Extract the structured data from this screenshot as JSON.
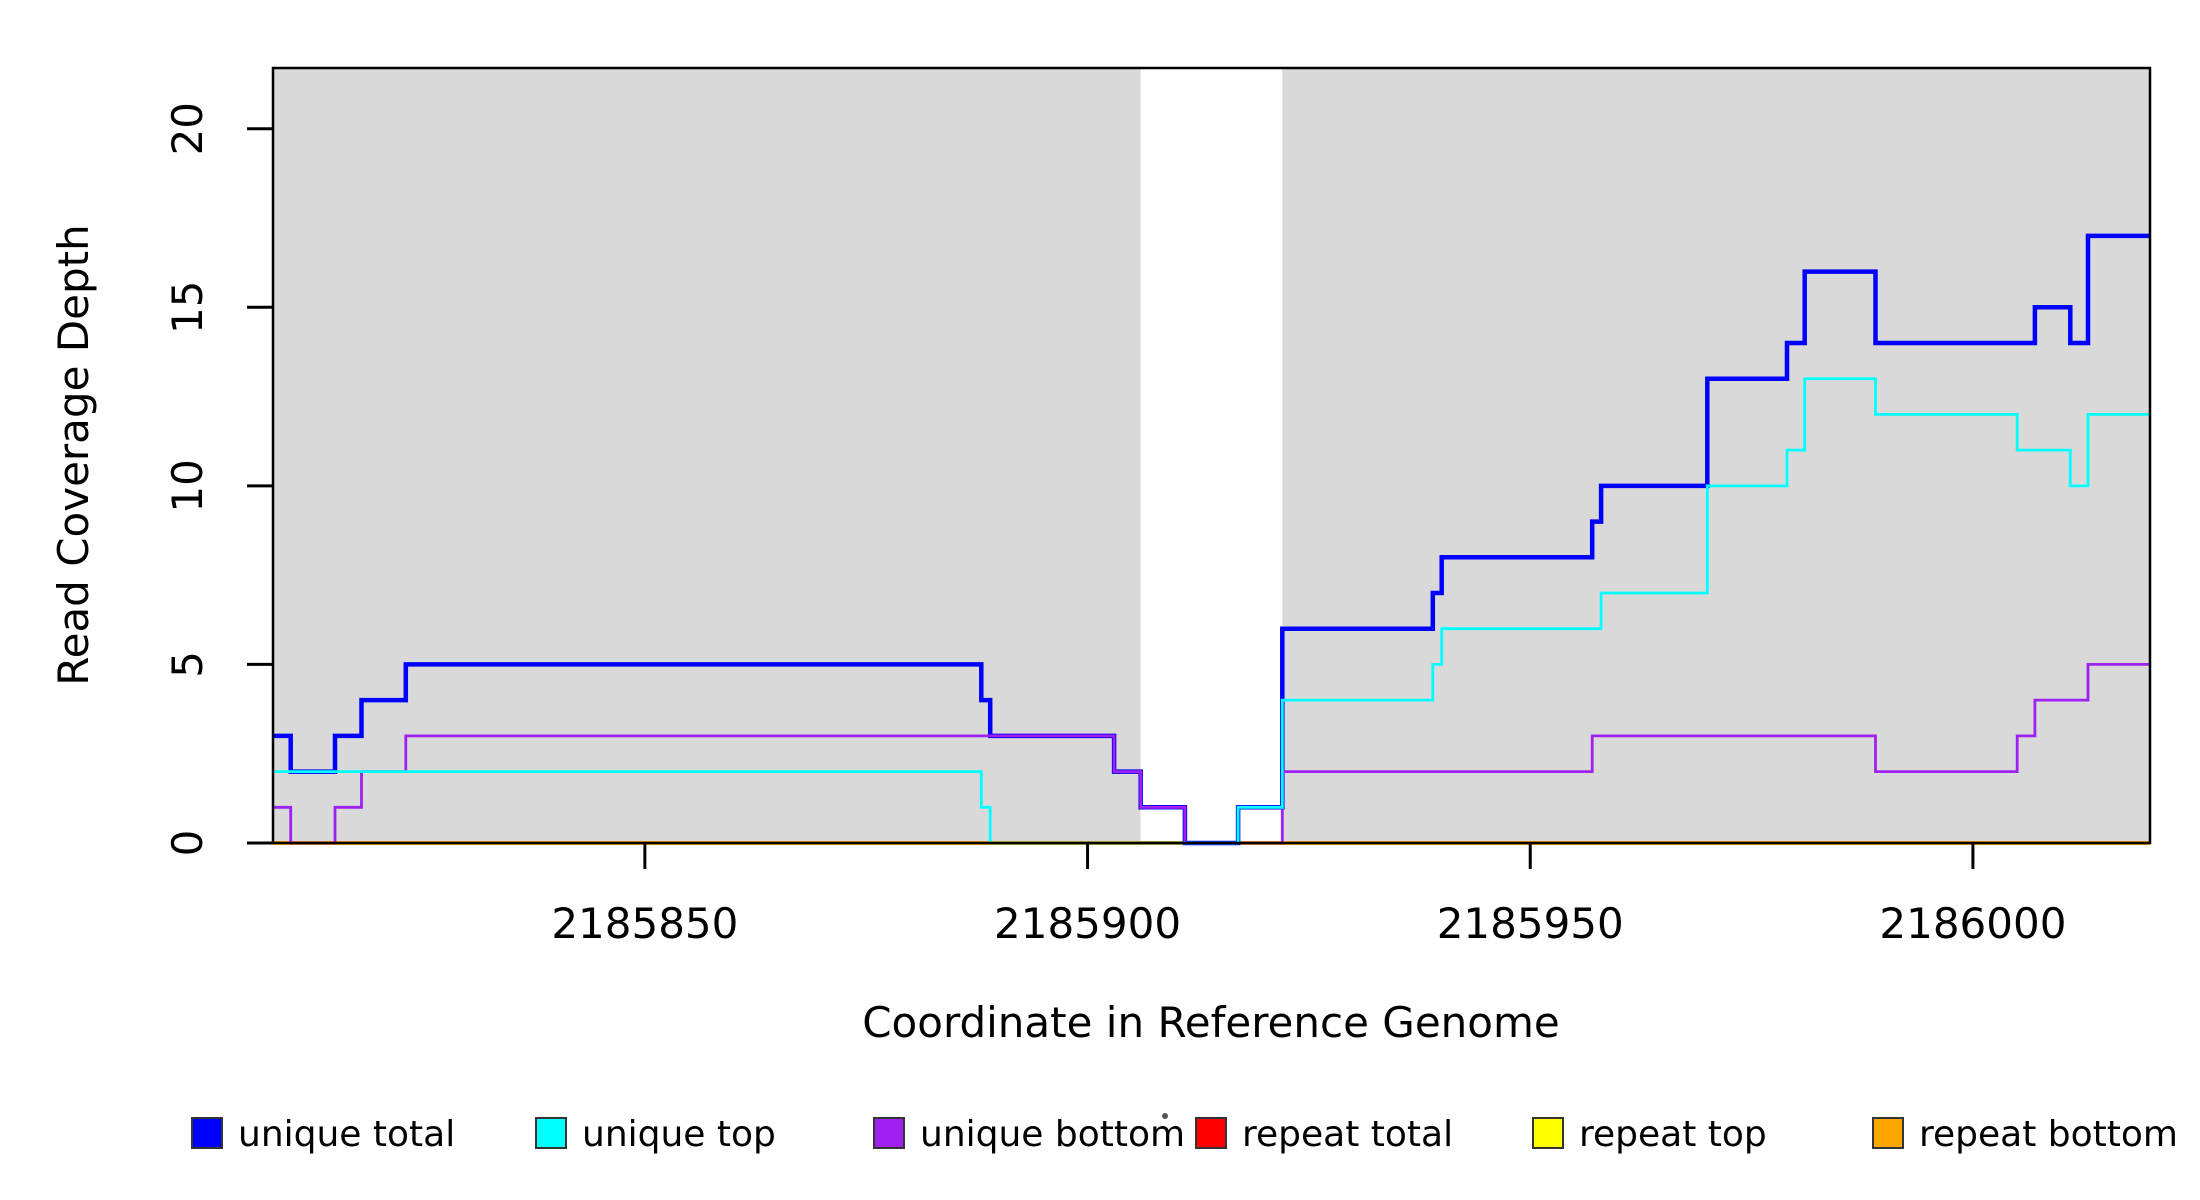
{
  "chart_data": {
    "type": "line",
    "subtype": "step-coverage",
    "title": "",
    "xlabel": "Coordinate in Reference Genome",
    "ylabel": "Read Coverage Depth",
    "xlim": [
      2185808,
      2186020
    ],
    "ylim": [
      0,
      21.7
    ],
    "x_ticks": [
      2185850,
      2185900,
      2185950,
      2186000
    ],
    "y_ticks": [
      0,
      5,
      10,
      15,
      20
    ],
    "grid": false,
    "legend_position": "bottom",
    "panel_background_color": "#ffffff",
    "shaded_region_color": "#D9D9D9",
    "shaded_regions": [
      {
        "x0": 2185808,
        "x1": 2185906
      },
      {
        "x0": 2185922,
        "x1": 2186020
      }
    ],
    "series": [
      {
        "name": "unique total",
        "color": "#0000FF",
        "line_width": 4.5,
        "points": [
          [
            2185808,
            3
          ],
          [
            2185810,
            2
          ],
          [
            2185815,
            3
          ],
          [
            2185818,
            4
          ],
          [
            2185823,
            5
          ],
          [
            2185888,
            4
          ],
          [
            2185889,
            3
          ],
          [
            2185903,
            2
          ],
          [
            2185906,
            1
          ],
          [
            2185911,
            0
          ],
          [
            2185917,
            1
          ],
          [
            2185922,
            6
          ],
          [
            2185939,
            7
          ],
          [
            2185940,
            8
          ],
          [
            2185957,
            9
          ],
          [
            2185958,
            10
          ],
          [
            2185970,
            13
          ],
          [
            2185979,
            14
          ],
          [
            2185981,
            16
          ],
          [
            2185989,
            14
          ],
          [
            2186007,
            15
          ],
          [
            2186011,
            14
          ],
          [
            2186013,
            17
          ],
          [
            2186020,
            17
          ]
        ]
      },
      {
        "name": "unique top",
        "color": "#00FFFF",
        "line_width": 2.8,
        "points": [
          [
            2185808,
            2
          ],
          [
            2185888,
            1
          ],
          [
            2185889,
            0
          ],
          [
            2185917,
            1
          ],
          [
            2185922,
            4
          ],
          [
            2185939,
            5
          ],
          [
            2185940,
            6
          ],
          [
            2185958,
            7
          ],
          [
            2185970,
            10
          ],
          [
            2185979,
            11
          ],
          [
            2185981,
            13
          ],
          [
            2185989,
            12
          ],
          [
            2186005,
            11
          ],
          [
            2186011,
            10
          ],
          [
            2186013,
            12
          ],
          [
            2186020,
            12
          ]
        ]
      },
      {
        "name": "unique bottom",
        "color": "#A020F0",
        "line_width": 2.8,
        "points": [
          [
            2185808,
            1
          ],
          [
            2185810,
            0
          ],
          [
            2185815,
            1
          ],
          [
            2185818,
            2
          ],
          [
            2185823,
            3
          ],
          [
            2185903,
            2
          ],
          [
            2185906,
            1
          ],
          [
            2185911,
            0
          ],
          [
            2185922,
            2
          ],
          [
            2185957,
            3
          ],
          [
            2185989,
            2
          ],
          [
            2186005,
            3
          ],
          [
            2186007,
            4
          ],
          [
            2186013,
            5
          ],
          [
            2186020,
            5
          ]
        ]
      },
      {
        "name": "repeat total",
        "color": "#FF0000",
        "line_width": 2.8,
        "points": [
          [
            2185808,
            0
          ],
          [
            2186020,
            0
          ]
        ]
      },
      {
        "name": "repeat top",
        "color": "#FFFF00",
        "line_width": 2.8,
        "points": [
          [
            2185808,
            0
          ],
          [
            2186020,
            0
          ]
        ]
      },
      {
        "name": "repeat bottom",
        "color": "#FFA500",
        "line_width": 4,
        "points": [
          [
            2185808,
            0
          ],
          [
            2186020,
            0
          ]
        ]
      }
    ],
    "draw_order": [
      "repeat total",
      "repeat top",
      "repeat bottom",
      "unique total",
      "unique bottom",
      "unique top"
    ],
    "legend": [
      {
        "label": "unique total",
        "color": "#0000FF"
      },
      {
        "label": "unique top",
        "color": "#00FFFF"
      },
      {
        "label": "unique bottom",
        "color": "#A020F0"
      },
      {
        "label": "repeat total",
        "color": "#FF0000"
      },
      {
        "label": "repeat top",
        "color": "#FFFF00"
      },
      {
        "label": "repeat bottom",
        "color": "#FFA500"
      }
    ],
    "axis_color": "#000000"
  }
}
